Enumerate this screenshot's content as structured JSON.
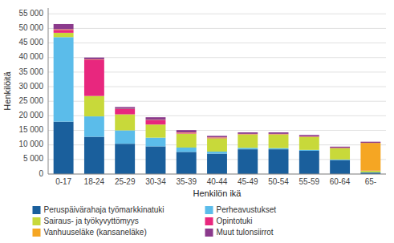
{
  "chart_data": {
    "type": "bar",
    "stacked": true,
    "categories": [
      "0-17",
      "18-24",
      "25-29",
      "30-34",
      "35-39",
      "40-44",
      "45-49",
      "50-54",
      "55-59",
      "60-64",
      "65-"
    ],
    "series": [
      {
        "name": "Peruspäivärahaja työmarkkinatuki",
        "color": "#1a5f9c",
        "values": [
          18000,
          12800,
          10400,
          9500,
          7600,
          7000,
          8500,
          8500,
          8000,
          4800,
          500
        ]
      },
      {
        "name": "Perheavustukset",
        "color": "#5bbcea",
        "values": [
          29000,
          7000,
          4600,
          3000,
          1500,
          700,
          500,
          400,
          300,
          200,
          100
        ]
      },
      {
        "name": "Sairaus- ja työkyvyttömyys",
        "color": "#c8d93a",
        "values": [
          1500,
          7000,
          5500,
          4500,
          4800,
          4600,
          4600,
          4700,
          4400,
          3800,
          500
        ]
      },
      {
        "name": "Opintotuki",
        "color": "#e8277e",
        "values": [
          1000,
          12500,
          1800,
          1500,
          300,
          200,
          100,
          100,
          100,
          100,
          100
        ]
      },
      {
        "name": "Vanhuuseläke (kansaneläke)",
        "color": "#f5a623",
        "values": [
          200,
          100,
          100,
          100,
          100,
          100,
          100,
          100,
          100,
          100,
          9500
        ]
      },
      {
        "name": "Muut tulonsiirrot",
        "color": "#8b3a8c",
        "values": [
          1800,
          600,
          600,
          900,
          800,
          500,
          500,
          500,
          500,
          400,
          400
        ]
      }
    ],
    "xlabel": "Henkilön ikä",
    "ylabel": "Henkilöitä",
    "ylim": [
      0,
      57000
    ],
    "yticks": [
      0,
      {
        "value": 5000,
        "label": "5 000"
      },
      {
        "value": 10000,
        "label": "10 000"
      },
      {
        "value": 15000,
        "label": "15 000"
      },
      {
        "value": 20000,
        "label": "20 000"
      },
      {
        "value": 25000,
        "label": "25 000"
      },
      {
        "value": 30000,
        "label": "30 000"
      },
      {
        "value": 35000,
        "label": "35 000"
      },
      {
        "value": 40000,
        "label": "40 000"
      },
      {
        "value": 45000,
        "label": "45 000"
      },
      {
        "value": 50000,
        "label": "50 000"
      },
      {
        "value": 55000,
        "label": "55 000"
      }
    ],
    "grid": true,
    "legend": "bottom"
  }
}
